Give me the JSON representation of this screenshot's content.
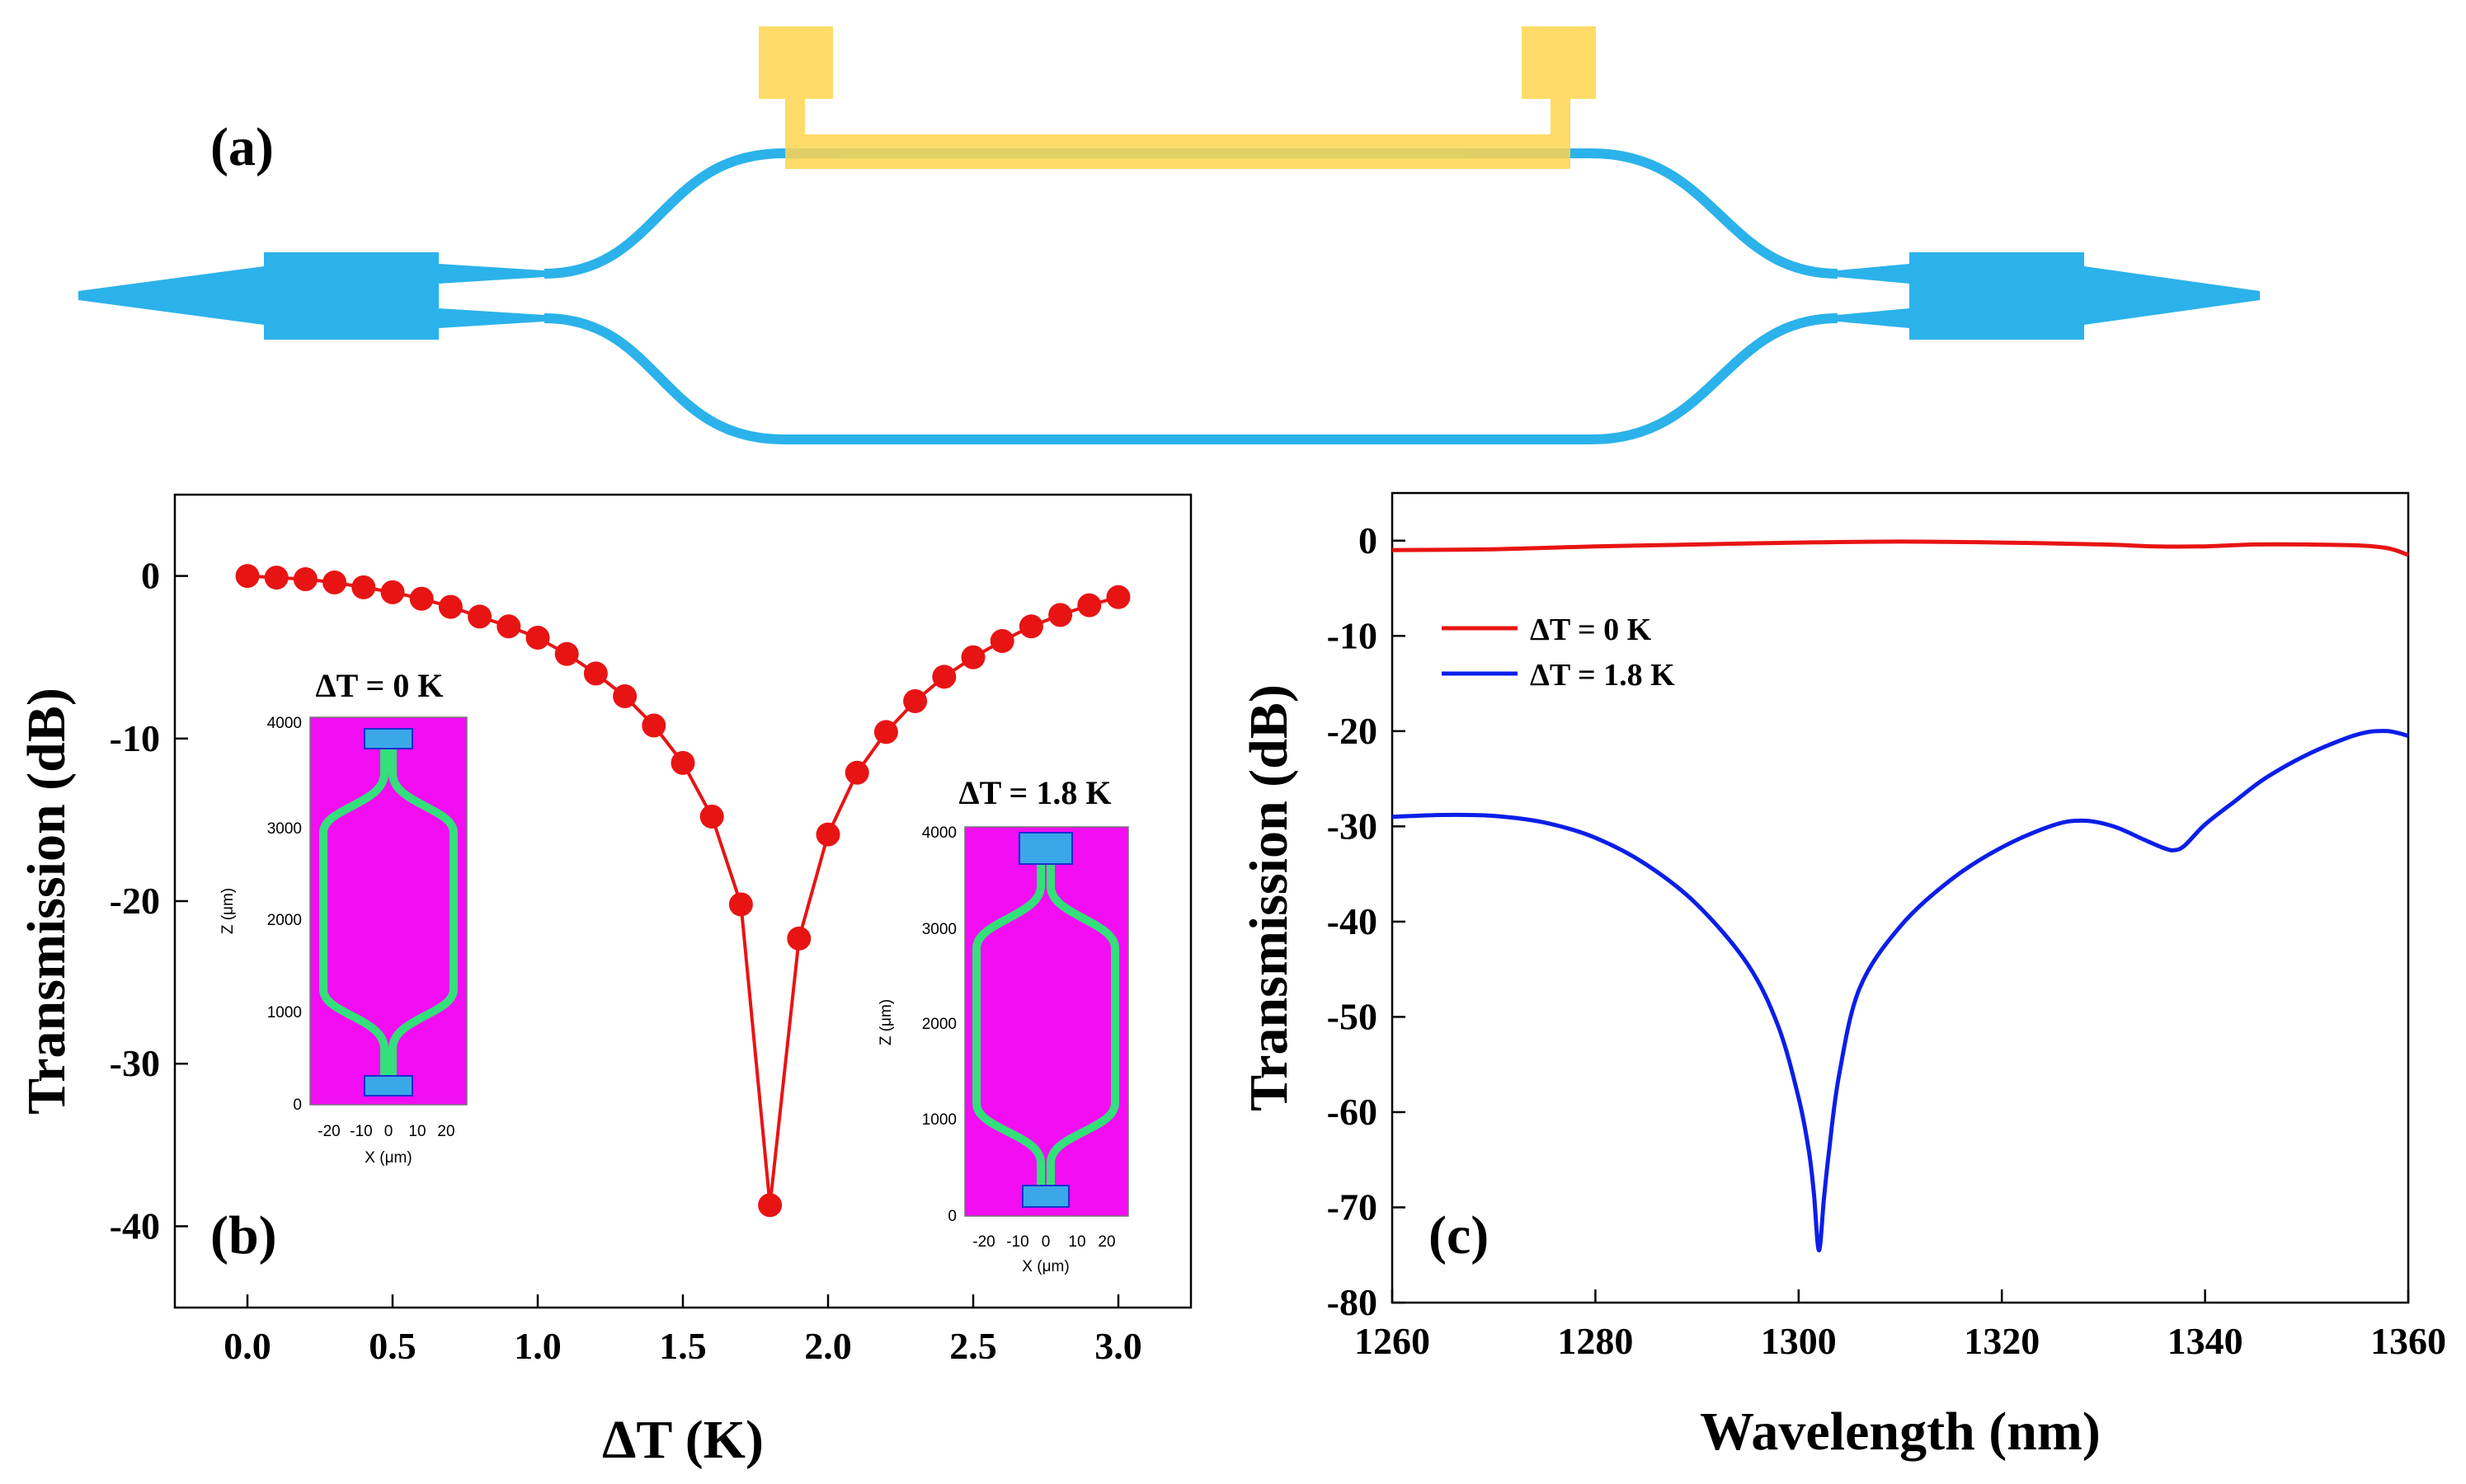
{
  "panels": {
    "a": {
      "label": "(a)"
    },
    "b": {
      "label": "(b)"
    },
    "c": {
      "label": "(c)"
    }
  },
  "colors": {
    "waveguide": "#2bb2ea",
    "heater": "#ffd54f",
    "red": "#e81414",
    "blue": "#0b1ee8",
    "inset_bg": "#f20df2",
    "inset_guide": "#33e07a"
  },
  "insets": [
    {
      "title": "ΔT = 0 K",
      "xlabel": "X (μm)",
      "ylabel": "Z (μm)",
      "xticks": [
        "-20",
        "-10",
        "0",
        "10",
        "20"
      ],
      "yticks": [
        "0",
        "1000",
        "2000",
        "3000",
        "4000"
      ]
    },
    {
      "title": "ΔT = 1.8 K",
      "xlabel": "X (μm)",
      "ylabel": "Z (μm)",
      "xticks": [
        "-20",
        "-10",
        "0",
        "10",
        "20"
      ],
      "yticks": [
        "0",
        "1000",
        "2000",
        "3000",
        "4000"
      ]
    }
  ],
  "chart_data": [
    {
      "type": "line",
      "panel": "b",
      "xlabel": "ΔT (K)",
      "ylabel": "Transmission (dB)",
      "xlim": [
        -0.25,
        3.25
      ],
      "ylim": [
        -45,
        5
      ],
      "xticks": [
        0.0,
        0.5,
        1.0,
        1.5,
        2.0,
        2.5,
        3.0
      ],
      "xtick_labels": [
        "0.0",
        "0.5",
        "1.0",
        "1.5",
        "2.0",
        "2.5",
        "3.0"
      ],
      "yticks": [
        0,
        -10,
        -20,
        -30,
        -40
      ],
      "ytick_labels": [
        "0",
        "-10",
        "-20",
        "-30",
        "-40"
      ],
      "series": [
        {
          "name": "Transmission",
          "marker": "circle",
          "x": [
            0.0,
            0.1,
            0.2,
            0.3,
            0.4,
            0.5,
            0.6,
            0.7,
            0.8,
            0.9,
            1.0,
            1.1,
            1.2,
            1.3,
            1.4,
            1.5,
            1.6,
            1.7,
            1.8,
            1.9,
            2.0,
            2.1,
            2.2,
            2.3,
            2.4,
            2.5,
            2.6,
            2.7,
            2.8,
            2.9,
            3.0
          ],
          "y": [
            0.0,
            -0.1,
            -0.2,
            -0.4,
            -0.7,
            -1.0,
            -1.4,
            -1.9,
            -2.5,
            -3.1,
            -3.8,
            -4.8,
            -6.0,
            -7.4,
            -9.2,
            -11.5,
            -14.8,
            -20.2,
            -38.7,
            -22.3,
            -15.9,
            -12.1,
            -9.6,
            -7.7,
            -6.2,
            -5.0,
            -4.0,
            -3.1,
            -2.4,
            -1.8,
            -1.3
          ]
        }
      ]
    },
    {
      "type": "line",
      "panel": "c",
      "xlabel": "Wavelength (nm)",
      "ylabel": "Transmission (dB)",
      "xlim": [
        1260,
        1360
      ],
      "ylim": [
        -80,
        5
      ],
      "xticks": [
        1260,
        1280,
        1300,
        1320,
        1340,
        1360
      ],
      "xtick_labels": [
        "1260",
        "1280",
        "1300",
        "1320",
        "1340",
        "1360"
      ],
      "yticks": [
        0,
        -10,
        -20,
        -30,
        -40,
        -50,
        -60,
        -70,
        -80
      ],
      "ytick_labels": [
        "0",
        "-10",
        "-20",
        "-30",
        "-40",
        "-50",
        "-60",
        "-70",
        "-80"
      ],
      "legend_position": "upper-left",
      "series": [
        {
          "name": "ΔT = 0 K",
          "x": [
            1260,
            1270,
            1280,
            1290,
            1300,
            1310,
            1320,
            1330,
            1335,
            1340,
            1345,
            1350,
            1355,
            1358,
            1360
          ],
          "y": [
            -1.0,
            -0.9,
            -0.6,
            -0.4,
            -0.2,
            -0.1,
            -0.2,
            -0.4,
            -0.6,
            -0.6,
            -0.4,
            -0.4,
            -0.5,
            -0.8,
            -1.5
          ]
        },
        {
          "name": "ΔT = 1.8 K",
          "x": [
            1260,
            1265,
            1270,
            1275,
            1280,
            1285,
            1290,
            1295,
            1298,
            1300,
            1301,
            1301.5,
            1302,
            1302.5,
            1303,
            1304,
            1306,
            1310,
            1315,
            1320,
            1325,
            1328,
            1331,
            1334,
            1336,
            1337,
            1338,
            1340,
            1343,
            1346,
            1350,
            1354,
            1356,
            1357,
            1358,
            1359,
            1360
          ],
          "y": [
            -29.0,
            -28.8,
            -28.9,
            -29.6,
            -31.2,
            -34.0,
            -38.2,
            -44.5,
            -51.0,
            -58.5,
            -64.0,
            -68.5,
            -74.5,
            -69.0,
            -64.0,
            -56.0,
            -47.0,
            -40.5,
            -35.6,
            -32.2,
            -29.9,
            -29.4,
            -30.0,
            -31.4,
            -32.3,
            -32.5,
            -32.0,
            -29.8,
            -27.3,
            -24.9,
            -22.5,
            -20.7,
            -20.1,
            -20.0,
            -20.0,
            -20.2,
            -20.5
          ]
        }
      ]
    }
  ]
}
